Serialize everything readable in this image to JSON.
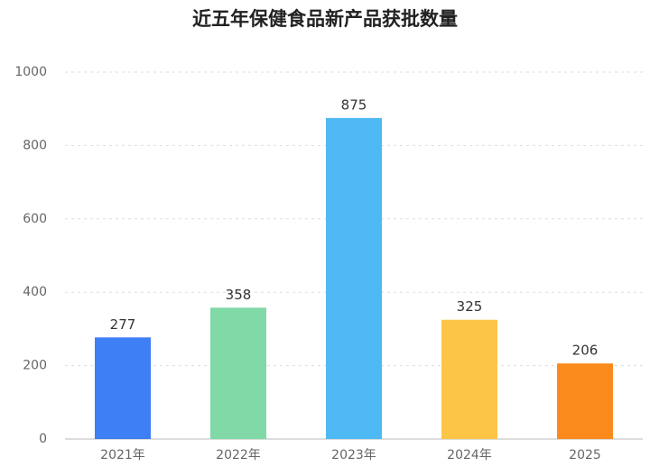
{
  "chart_data": {
    "type": "bar",
    "title": "近五年保健食品新产品获批数量",
    "categories": [
      "2021年",
      "2022年",
      "2023年",
      "2024年",
      "2025"
    ],
    "values": [
      277,
      358,
      875,
      325,
      206
    ],
    "colors": [
      "#3f7ff6",
      "#80d9a6",
      "#4fb9f3",
      "#fdc546",
      "#fb8a1d"
    ],
    "ylim": [
      0,
      1000
    ],
    "yticks": [
      0,
      200,
      400,
      600,
      800,
      1000
    ],
    "grid": true
  }
}
